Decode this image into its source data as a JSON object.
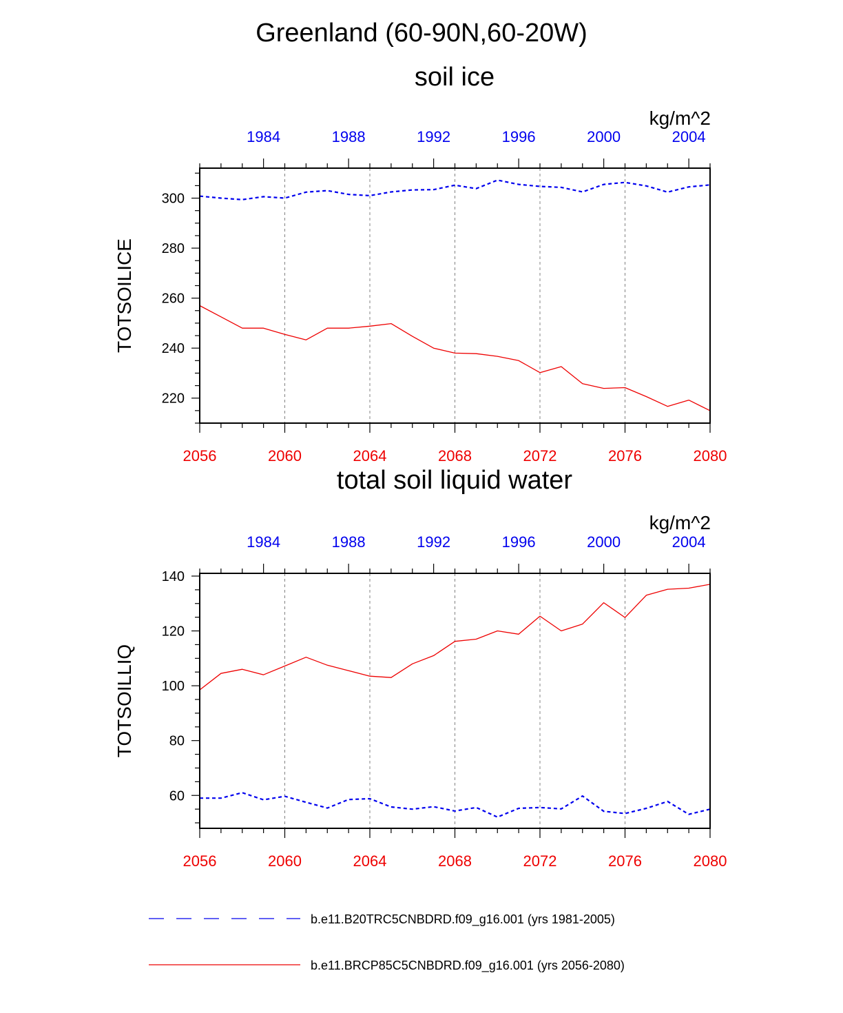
{
  "figure": {
    "title": "Greenland (60-90N,60-20W)"
  },
  "colors": {
    "control": "#0000ee",
    "future": "#ee0000",
    "axis": "#000000",
    "grid": "#808080"
  },
  "chart_data": [
    {
      "type": "line",
      "title": "soil ice",
      "ylabel": "TOTSOILICE",
      "units": "kg/m^2",
      "ylim": [
        210,
        312
      ],
      "yticks": [
        220,
        240,
        260,
        280,
        300
      ],
      "yminor_step": 5,
      "bottom_axis": {
        "range": [
          2056,
          2080
        ],
        "tick_labels": [
          "2056",
          "2060",
          "2064",
          "2068",
          "2072",
          "2076",
          "2080"
        ]
      },
      "top_axis": {
        "range": [
          1981,
          2005
        ],
        "tick_labels": [
          "1984",
          "1988",
          "1992",
          "1996",
          "2000",
          "2004"
        ]
      },
      "grid_x": [
        2060,
        2064,
        2068,
        2072,
        2076
      ],
      "series": [
        {
          "name": "b.e11.BRCP85C5CNBDRD.f09_g16.001 (yrs 2056-2080)",
          "axis": "bottom",
          "style": "solid",
          "x": [
            2056,
            2057,
            2058,
            2059,
            2060,
            2061,
            2062,
            2063,
            2064,
            2065,
            2066,
            2067,
            2068,
            2069,
            2070,
            2071,
            2072,
            2073,
            2074,
            2075,
            2076,
            2077,
            2078,
            2079,
            2080
          ],
          "values": [
            257,
            252.5,
            248,
            248,
            245.5,
            243.3,
            248,
            248,
            248.8,
            249.8,
            244.7,
            240,
            238,
            237.8,
            236.7,
            235,
            230.2,
            232.6,
            225.8,
            223.9,
            224.2,
            220.6,
            216.7,
            219.2,
            215
          ]
        },
        {
          "name": "b.e11.B20TRC5CNBDRD.f09_g16.001 (yrs 1981-2005)",
          "axis": "top",
          "style": "dashed",
          "x": [
            1981,
            1982,
            1983,
            1984,
            1985,
            1986,
            1987,
            1988,
            1989,
            1990,
            1991,
            1992,
            1993,
            1994,
            1995,
            1996,
            1997,
            1998,
            1999,
            2000,
            2001,
            2002,
            2003,
            2004,
            2005
          ],
          "values": [
            300.8,
            300,
            299.4,
            300.6,
            300,
            302.4,
            303,
            301.5,
            301,
            302.5,
            303.3,
            303.4,
            305.2,
            303.8,
            307.2,
            305.5,
            304.7,
            304.3,
            302.5,
            305.5,
            306.3,
            304.9,
            302.4,
            304.5,
            305.3
          ]
        }
      ]
    },
    {
      "type": "line",
      "title": "total soil liquid water",
      "ylabel": "TOTSOILLIQ",
      "units": "kg/m^2",
      "ylim": [
        48,
        141
      ],
      "yticks": [
        60,
        80,
        100,
        120,
        140
      ],
      "yminor_step": 5,
      "bottom_axis": {
        "range": [
          2056,
          2080
        ],
        "tick_labels": [
          "2056",
          "2060",
          "2064",
          "2068",
          "2072",
          "2076",
          "2080"
        ]
      },
      "top_axis": {
        "range": [
          1981,
          2005
        ],
        "tick_labels": [
          "1984",
          "1988",
          "1992",
          "1996",
          "2000",
          "2004"
        ]
      },
      "grid_x": [
        2060,
        2064,
        2068,
        2072,
        2076
      ],
      "series": [
        {
          "name": "b.e11.BRCP85C5CNBDRD.f09_g16.001 (yrs 2056-2080)",
          "axis": "bottom",
          "style": "solid",
          "x": [
            2056,
            2057,
            2058,
            2059,
            2060,
            2061,
            2062,
            2063,
            2064,
            2065,
            2066,
            2067,
            2068,
            2069,
            2070,
            2071,
            2072,
            2073,
            2074,
            2075,
            2076,
            2077,
            2078,
            2079,
            2080
          ],
          "values": [
            98.5,
            104.5,
            106,
            104,
            107.2,
            110.4,
            107.5,
            105.5,
            103.5,
            103,
            108,
            111,
            116.2,
            117,
            120,
            118.8,
            125.4,
            120,
            122.5,
            130.3,
            124.9,
            133,
            135.2,
            135.6,
            137
          ]
        },
        {
          "name": "b.e11.B20TRC5CNBDRD.f09_g16.001 (yrs 1981-2005)",
          "axis": "top",
          "style": "dashed",
          "x": [
            1981,
            1982,
            1983,
            1984,
            1985,
            1986,
            1987,
            1988,
            1989,
            1990,
            1991,
            1992,
            1993,
            1994,
            1995,
            1996,
            1997,
            1998,
            1999,
            2000,
            2001,
            2002,
            2003,
            2004,
            2005
          ],
          "values": [
            59,
            59,
            61,
            58.4,
            59.7,
            57.5,
            55.4,
            58.5,
            58.8,
            55.8,
            55,
            55.9,
            54.3,
            55.6,
            52.1,
            55.3,
            55.6,
            55.1,
            59.8,
            54.2,
            53.4,
            55.3,
            57.8,
            53.1,
            55
          ]
        }
      ]
    }
  ],
  "legend": {
    "entries": [
      {
        "label": "b.e11.B20TRC5CNBDRD.f09_g16.001 (yrs 1981-2005)",
        "style": "dashed",
        "color_key": "control"
      },
      {
        "label": "b.e11.BRCP85C5CNBDRD.f09_g16.001 (yrs 2056-2080)",
        "style": "solid",
        "color_key": "future"
      }
    ]
  }
}
